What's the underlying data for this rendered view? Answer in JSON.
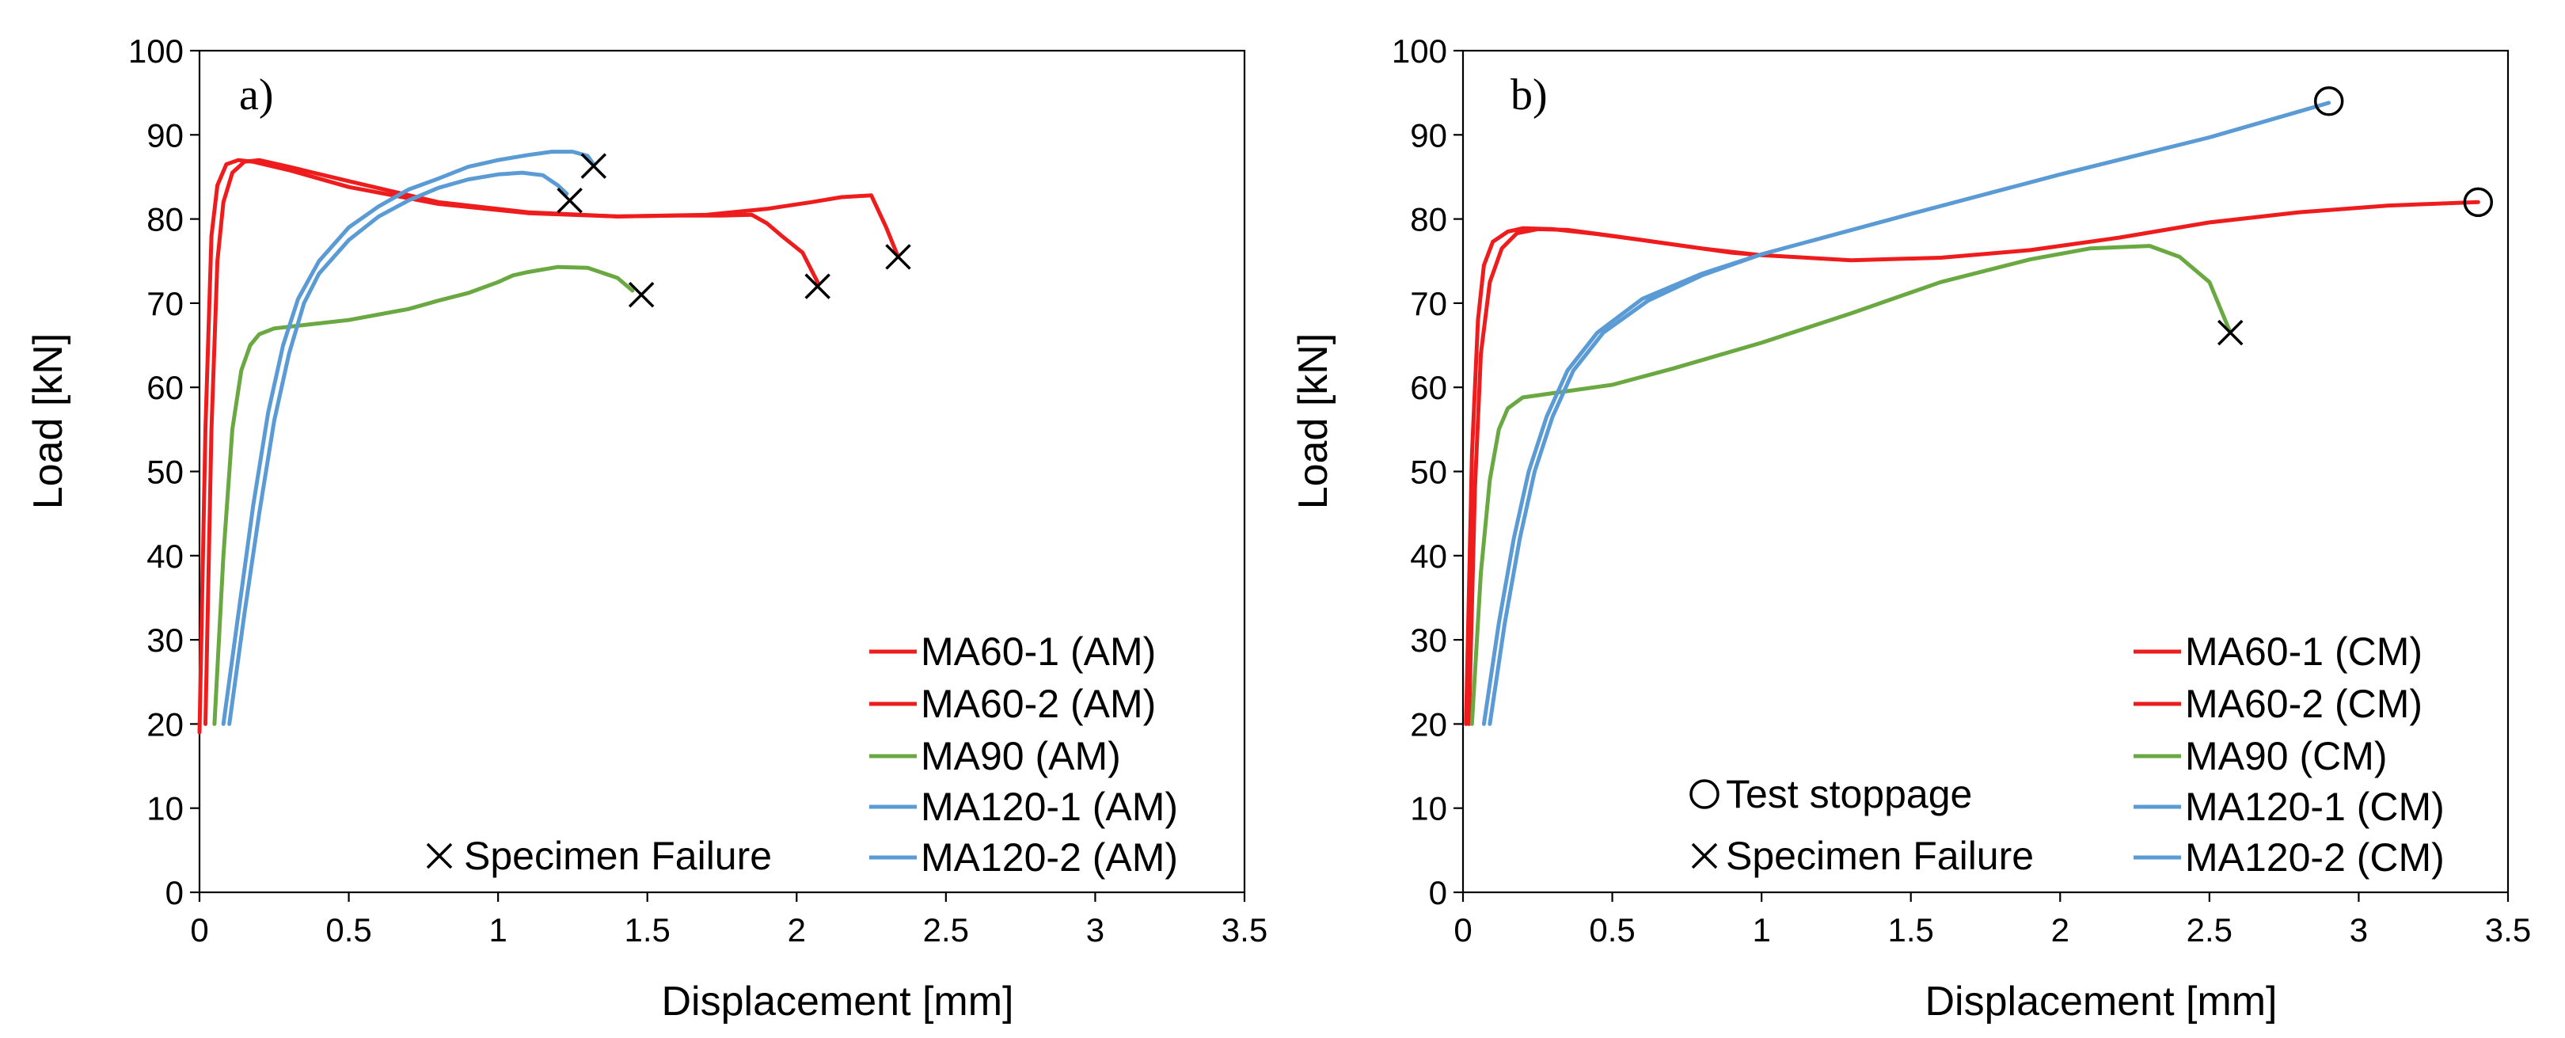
{
  "colors": {
    "AM60": "#ee1c1c",
    "AM90": "#6aa841",
    "AM120": "#5b9bd5"
  },
  "chart_data": [
    {
      "type": "line",
      "panel_label": "a)",
      "xlabel": "Displacement [mm]",
      "ylabel": "Load [kN]",
      "xlim": [
        0,
        3.5
      ],
      "ylim": [
        0,
        100
      ],
      "xticks": [
        0,
        0.5,
        1,
        1.5,
        2,
        2.5,
        3,
        3.5
      ],
      "xtick_labels": [
        "0",
        "0.5",
        "1",
        "1.5",
        "2",
        "2.5",
        "3",
        "3.5"
      ],
      "yticks": [
        0,
        10,
        20,
        30,
        40,
        50,
        60,
        70,
        80,
        90,
        100
      ],
      "ytick_labels": [
        "0",
        "10",
        "20",
        "30",
        "40",
        "50",
        "60",
        "70",
        "80",
        "90",
        "100"
      ],
      "series": [
        {
          "name": "MA60-1 (AM)",
          "color": "#ee1c1c",
          "x": [
            0.0,
            0.02,
            0.04,
            0.06,
            0.09,
            0.13,
            0.18,
            0.3,
            0.5,
            0.8,
            1.1,
            1.4,
            1.7,
            1.9,
            2.05,
            2.15,
            2.25,
            2.3,
            2.34
          ],
          "y": [
            19,
            55,
            78,
            84,
            86.5,
            87,
            86.8,
            85.8,
            83.8,
            81.8,
            80.7,
            80.3,
            80.5,
            81.2,
            82.0,
            82.6,
            82.8,
            79,
            75.5
          ]
        },
        {
          "name": "MA60-2 (AM)",
          "color": "#ee1c1c",
          "x": [
            0.02,
            0.04,
            0.06,
            0.08,
            0.11,
            0.15,
            0.2,
            0.3,
            0.5,
            0.8,
            1.1,
            1.4,
            1.6,
            1.75,
            1.85,
            1.9,
            1.95,
            2.02,
            2.07
          ],
          "y": [
            20,
            55,
            75,
            82,
            85.5,
            86.8,
            87,
            86.2,
            84.5,
            82.0,
            80.8,
            80.3,
            80.4,
            80.4,
            80.5,
            79.5,
            78,
            76,
            72.5
          ]
        },
        {
          "name": "MA90 (AM)",
          "color": "#6aa841",
          "x": [
            0.05,
            0.08,
            0.11,
            0.14,
            0.17,
            0.2,
            0.25,
            0.35,
            0.5,
            0.7,
            0.8,
            0.9,
            1.0,
            1.05,
            1.1,
            1.2,
            1.3,
            1.4,
            1.45
          ],
          "y": [
            20,
            40,
            55,
            62,
            65,
            66.3,
            67,
            67.4,
            68,
            69.3,
            70.3,
            71.2,
            72.5,
            73.3,
            73.7,
            74.3,
            74.2,
            73,
            71.5
          ]
        },
        {
          "name": "MA120-1 (AM)",
          "color": "#5b9bd5",
          "x": [
            0.1,
            0.15,
            0.2,
            0.25,
            0.3,
            0.35,
            0.4,
            0.5,
            0.6,
            0.7,
            0.8,
            0.9,
            1.0,
            1.08,
            1.15,
            1.2,
            1.23
          ],
          "y": [
            20,
            33,
            45,
            56,
            64,
            70,
            73.5,
            77.5,
            80.3,
            82.2,
            83.7,
            84.7,
            85.3,
            85.5,
            85.2,
            84,
            83
          ]
        },
        {
          "name": "MA120-2 (AM)",
          "color": "#5b9bd5",
          "x": [
            0.08,
            0.13,
            0.18,
            0.23,
            0.28,
            0.33,
            0.4,
            0.5,
            0.6,
            0.7,
            0.8,
            0.9,
            1.0,
            1.1,
            1.18,
            1.25,
            1.3,
            1.32
          ],
          "y": [
            20,
            33,
            46,
            57,
            65,
            70.5,
            75,
            79,
            81.5,
            83.5,
            84.8,
            86.2,
            87,
            87.6,
            88,
            88,
            87.5,
            86.5
          ]
        }
      ],
      "markers": {
        "type": "cross",
        "label": "Specimen Failure",
        "points": [
          [
            1.32,
            86.3
          ],
          [
            1.24,
            82.2
          ],
          [
            1.48,
            71
          ],
          [
            2.07,
            72
          ],
          [
            2.34,
            75.5
          ]
        ]
      }
    },
    {
      "type": "line",
      "panel_label": "b)",
      "xlabel": "Displacement [mm]",
      "ylabel": "Load [kN]",
      "xlim": [
        0,
        3.5
      ],
      "ylim": [
        0,
        100
      ],
      "xticks": [
        0,
        0.5,
        1,
        1.5,
        2,
        2.5,
        3,
        3.5
      ],
      "xtick_labels": [
        "0",
        "0.5",
        "1",
        "1.5",
        "2",
        "2.5",
        "3",
        "3.5"
      ],
      "yticks": [
        0,
        10,
        20,
        30,
        40,
        50,
        60,
        70,
        80,
        90,
        100
      ],
      "ytick_labels": [
        "0",
        "10",
        "20",
        "30",
        "40",
        "50",
        "60",
        "70",
        "80",
        "90",
        "100"
      ],
      "series": [
        {
          "name": "MA60-1 (CM)",
          "color": "#ee1c1c",
          "x": [
            0.01,
            0.03,
            0.05,
            0.07,
            0.1,
            0.15,
            0.2,
            0.3,
            0.45,
            0.6,
            0.8,
            1.0,
            1.3,
            1.6,
            1.9,
            2.2,
            2.5,
            2.8,
            3.1,
            3.4
          ],
          "y": [
            20,
            52,
            68,
            74.5,
            77.3,
            78.5,
            78.9,
            78.8,
            78.2,
            77.5,
            76.5,
            75.7,
            75.1,
            75.4,
            76.3,
            77.8,
            79.6,
            80.8,
            81.6,
            82
          ]
        },
        {
          "name": "MA60-2 (CM)",
          "color": "#ee1c1c",
          "x": [
            0.02,
            0.04,
            0.06,
            0.09,
            0.13,
            0.18,
            0.25,
            0.35,
            0.5,
            0.7,
            0.9,
            1.0
          ],
          "y": [
            20,
            48,
            64,
            72.5,
            76.5,
            78.3,
            78.8,
            78.7,
            78.0,
            77.0,
            76.0,
            75.7
          ]
        },
        {
          "name": "MA90 (CM)",
          "color": "#6aa841",
          "x": [
            0.03,
            0.06,
            0.09,
            0.12,
            0.15,
            0.2,
            0.3,
            0.5,
            0.7,
            1.0,
            1.3,
            1.6,
            1.9,
            2.1,
            2.3,
            2.4,
            2.5,
            2.57
          ],
          "y": [
            20,
            38,
            49,
            55,
            57.5,
            58.8,
            59.3,
            60.3,
            62.2,
            65.3,
            68.8,
            72.5,
            75.2,
            76.5,
            76.8,
            75.5,
            72.5,
            66.5
          ]
        },
        {
          "name": "MA120-1 (CM)",
          "color": "#5b9bd5",
          "x": [
            0.07,
            0.12,
            0.17,
            0.22,
            0.28,
            0.35,
            0.45,
            0.6,
            0.8,
            1.0,
            1.5,
            2.0,
            2.5,
            2.9
          ],
          "y": [
            20,
            32,
            42,
            50,
            56.5,
            62,
            66.5,
            70.5,
            73.5,
            75.8,
            80.6,
            85.3,
            89.7,
            93.8
          ]
        },
        {
          "name": "MA120-2 (CM)",
          "color": "#5b9bd5",
          "x": [
            0.09,
            0.14,
            0.19,
            0.24,
            0.3,
            0.37,
            0.47,
            0.62,
            0.8,
            1.0
          ],
          "y": [
            20,
            32,
            42,
            50,
            56.5,
            62,
            66.5,
            70.3,
            73.3,
            75.8
          ]
        }
      ],
      "markers": {
        "type": "cross",
        "label": "Specimen Failure",
        "points": [
          [
            2.57,
            66.5
          ]
        ]
      },
      "markers_secondary": {
        "type": "circle",
        "label": "Test stoppage",
        "points": [
          [
            2.9,
            94
          ],
          [
            3.4,
            82
          ]
        ]
      }
    }
  ]
}
